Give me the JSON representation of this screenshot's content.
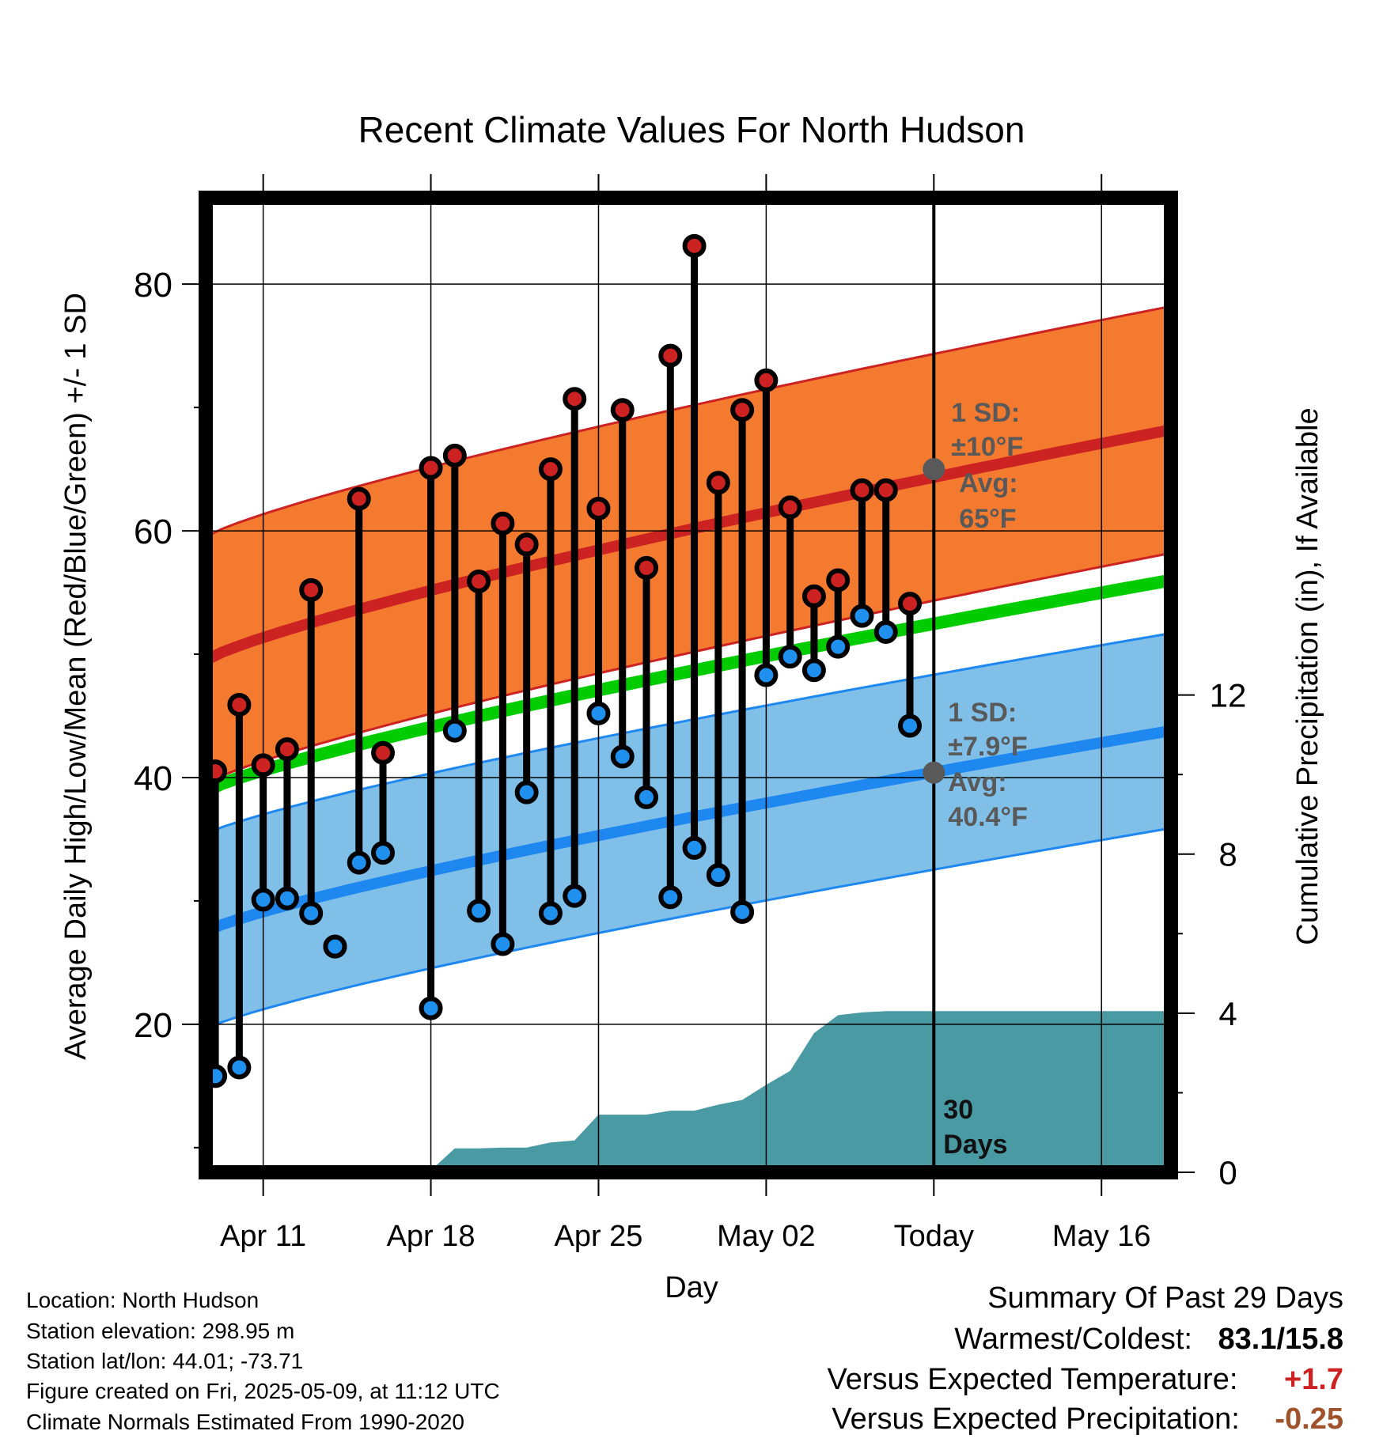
{
  "chart_data": {
    "type": "line",
    "title": "Recent Climate Values For North Hudson",
    "xlabel": "Day",
    "ylabel": "Average Daily High/Low/Mean (Red/Blue/Green) +/- 1 SD",
    "y2label": "Cumulative Precipitation (in), If Available",
    "ylim": [
      8,
      87
    ],
    "y2lim": [
      0,
      24.5
    ],
    "y_ticks": [
      "20",
      "40",
      "60",
      "80"
    ],
    "y2_ticks": [
      "0",
      "4",
      "8",
      "12"
    ],
    "x_tick_labels": [
      "Apr 11",
      "Apr 18",
      "Apr 25",
      "May 02",
      "Today",
      "May 16"
    ],
    "x_tick_days": [
      11,
      18,
      25,
      32,
      39,
      46
    ],
    "xlim": [
      8.6,
      48.9
    ],
    "grid": true,
    "days": [
      9,
      10,
      11,
      12,
      13,
      14,
      15,
      16,
      17,
      18,
      19,
      20,
      21,
      22,
      23,
      24,
      25,
      26,
      27,
      28,
      29,
      30,
      31,
      32,
      33,
      34,
      35,
      36,
      37,
      38
    ],
    "series": [
      {
        "name": "High",
        "color": "#cc2222",
        "values": [
          40.5,
          45.9,
          41.0,
          42.3,
          55.2,
          26.3,
          62.6,
          42.0,
          null,
          65.1,
          66.1,
          55.9,
          60.6,
          58.9,
          65.0,
          70.7,
          61.8,
          69.8,
          57.0,
          74.2,
          83.1,
          63.9,
          69.8,
          72.2,
          61.9,
          54.7,
          56.0,
          63.3,
          63.3,
          54.1
        ]
      },
      {
        "name": "Low",
        "color": "#2090ee",
        "values": [
          15.8,
          16.5,
          30.1,
          30.2,
          29.0,
          26.3,
          33.1,
          33.9,
          null,
          21.3,
          43.8,
          29.2,
          26.5,
          38.8,
          29.0,
          30.4,
          45.2,
          41.7,
          38.4,
          30.3,
          34.3,
          32.1,
          29.1,
          48.3,
          49.8,
          48.7,
          50.6,
          53.1,
          51.8,
          44.2
        ]
      },
      {
        "name": "Mean",
        "color": "#00cc00",
        "start_value": 38.9,
        "end_value": 56.0
      }
    ],
    "normal_high": {
      "start": 49.5,
      "end": 68.2,
      "sd": 10,
      "color": "#cc2222",
      "band_color": "#f47a30"
    },
    "normal_low": {
      "start": 27.5,
      "end": 43.8,
      "sd": 7.9,
      "color": "#1e88f0",
      "band_color": "#80c0e8"
    },
    "precipitation": {
      "color": "#4a9aa4",
      "days": [
        9,
        10,
        11,
        12,
        13,
        14,
        15,
        16,
        17,
        18,
        19,
        20,
        21,
        22,
        23,
        24,
        25,
        26,
        27,
        28,
        29,
        30,
        31,
        32,
        33,
        34,
        35,
        36,
        37,
        38,
        48.9
      ],
      "values": [
        0,
        0,
        0,
        0.05,
        0.05,
        0.05,
        0.05,
        0.05,
        0.05,
        0.05,
        0.6,
        0.6,
        0.62,
        0.62,
        0.75,
        0.8,
        1.45,
        1.45,
        1.45,
        1.55,
        1.55,
        1.7,
        1.82,
        2.2,
        2.55,
        3.5,
        3.95,
        4.02,
        4.05,
        4.05,
        4.05
      ]
    },
    "annotations": {
      "today_day": 39,
      "high_sd_label": "1 SD:",
      "high_sd_value": "±10°F",
      "high_avg_label": "Avg:",
      "high_avg_value": "65°F",
      "high_avg": 65,
      "low_sd_label": "1 SD:",
      "low_sd_value": "±7.9°F",
      "low_avg_label": "Avg:",
      "low_avg_value": "40.4°F",
      "low_avg": 40.4,
      "days_label_1": "30",
      "days_label_2": "Days",
      "label_color": "#595959"
    }
  },
  "info": {
    "location": "Location: North Hudson",
    "elevation": "Station elevation: 298.95 m",
    "latlon": "Station lat/lon: 44.01; -73.71",
    "created": "Figure created on Fri, 2025-05-09, at 11:12 UTC",
    "normals": "Climate Normals Estimated From 1990-2020"
  },
  "summary": {
    "title": "Summary Of Past 29 Days",
    "warm_cold_label": "Warmest/Coldest:",
    "warm_cold_value": "83.1/15.8",
    "temp_label": "Versus Expected Temperature:",
    "temp_value": "+1.7",
    "temp_color": "#cc2222",
    "precip_label": "Versus Expected Precipitation:",
    "precip_value": "-0.25",
    "precip_color": "#a0522d"
  }
}
